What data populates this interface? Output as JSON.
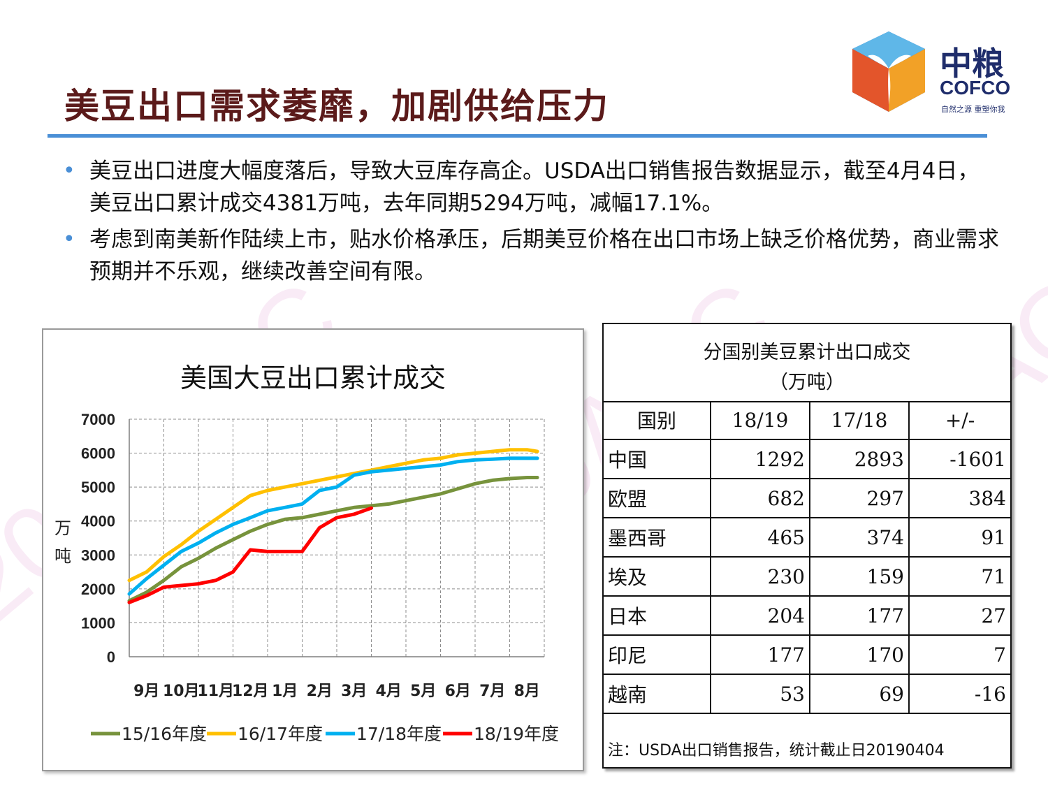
{
  "watermark": "2019AOC",
  "title": "美豆出口需求萎靡，加剧供给压力",
  "logo": {
    "cn": "中粮",
    "en": "COFCO",
    "slogan": "自然之源 重塑你我"
  },
  "bullets": [
    "美豆出口进度大幅度落后，导致大豆库存高企。USDA出口销售报告数据显示，截至4月4日，美豆出口累计成交4381万吨，去年同期5294万吨，减幅17.1%。",
    "考虑到南美新作陆续上市，贴水价格承压，后期美豆价格在出口市场上缺乏价格优势，商业需求预期并不乐观，继续改善空间有限。"
  ],
  "chart_data": {
    "type": "line",
    "title": "美国大豆出口累计成交",
    "ylabel": "万吨",
    "ylim": [
      0,
      7000
    ],
    "yticks": [
      0,
      1000,
      2000,
      3000,
      4000,
      5000,
      6000,
      7000
    ],
    "categories": [
      "9月",
      "10月",
      "11月",
      "12月",
      "1月",
      "2月",
      "3月",
      "4月",
      "5月",
      "6月",
      "7月",
      "8月"
    ],
    "x": [
      0,
      0.5,
      1,
      1.5,
      2,
      2.5,
      3,
      3.5,
      4,
      4.5,
      5,
      5.5,
      6,
      6.5,
      7,
      7.5,
      8,
      8.5,
      9,
      9.5,
      10,
      10.5,
      11,
      11.5,
      11.8
    ],
    "grid": true,
    "legend_position": "bottom",
    "series": [
      {
        "name": "15/16年度",
        "color": "#77933c",
        "values": [
          1650,
          1900,
          2250,
          2650,
          2900,
          3200,
          3450,
          3700,
          3900,
          4050,
          4100,
          4200,
          4300,
          4400,
          4450,
          4500,
          4600,
          4700,
          4800,
          4950,
          5100,
          5200,
          5250,
          5280,
          5280
        ]
      },
      {
        "name": "16/17年度",
        "color": "#ffc000",
        "values": [
          2250,
          2500,
          2950,
          3300,
          3700,
          4050,
          4400,
          4750,
          4900,
          5000,
          5100,
          5200,
          5300,
          5400,
          5500,
          5600,
          5700,
          5800,
          5850,
          5950,
          6000,
          6050,
          6100,
          6100,
          6050
        ]
      },
      {
        "name": "17/18年度",
        "color": "#00b0f0",
        "values": [
          1850,
          2300,
          2700,
          3100,
          3350,
          3650,
          3900,
          4100,
          4300,
          4400,
          4500,
          4900,
          5000,
          5350,
          5450,
          5500,
          5550,
          5600,
          5650,
          5750,
          5800,
          5820,
          5850,
          5850,
          5850
        ]
      },
      {
        "name": "18/19年度",
        "color": "#ff0000",
        "values": [
          1600,
          1800,
          2050,
          2100,
          2150,
          2250,
          2500,
          3150,
          3100,
          3100,
          3100,
          3800,
          4100,
          4200,
          4381,
          null,
          null,
          null,
          null,
          null,
          null,
          null,
          null,
          null,
          null
        ]
      }
    ]
  },
  "table": {
    "title": "分国别美豆累计出口成交",
    "unit": "（万吨）",
    "headers": [
      "国别",
      "18/19",
      "17/18",
      "+/-"
    ],
    "rows": [
      {
        "country": "中国",
        "y1819": "1292",
        "y1718": "2893",
        "diff": "-1601"
      },
      {
        "country": "欧盟",
        "y1819": "682",
        "y1718": "297",
        "diff": "384"
      },
      {
        "country": "墨西哥",
        "y1819": "465",
        "y1718": "374",
        "diff": "91"
      },
      {
        "country": "埃及",
        "y1819": "230",
        "y1718": "159",
        "diff": "71"
      },
      {
        "country": "日本",
        "y1819": "204",
        "y1718": "177",
        "diff": "27"
      },
      {
        "country": "印尼",
        "y1819": "177",
        "y1718": "170",
        "diff": "7"
      },
      {
        "country": "越南",
        "y1819": "53",
        "y1718": "69",
        "diff": "-16"
      }
    ],
    "note": "注：USDA出口销售报告，统计截止日20190404"
  }
}
